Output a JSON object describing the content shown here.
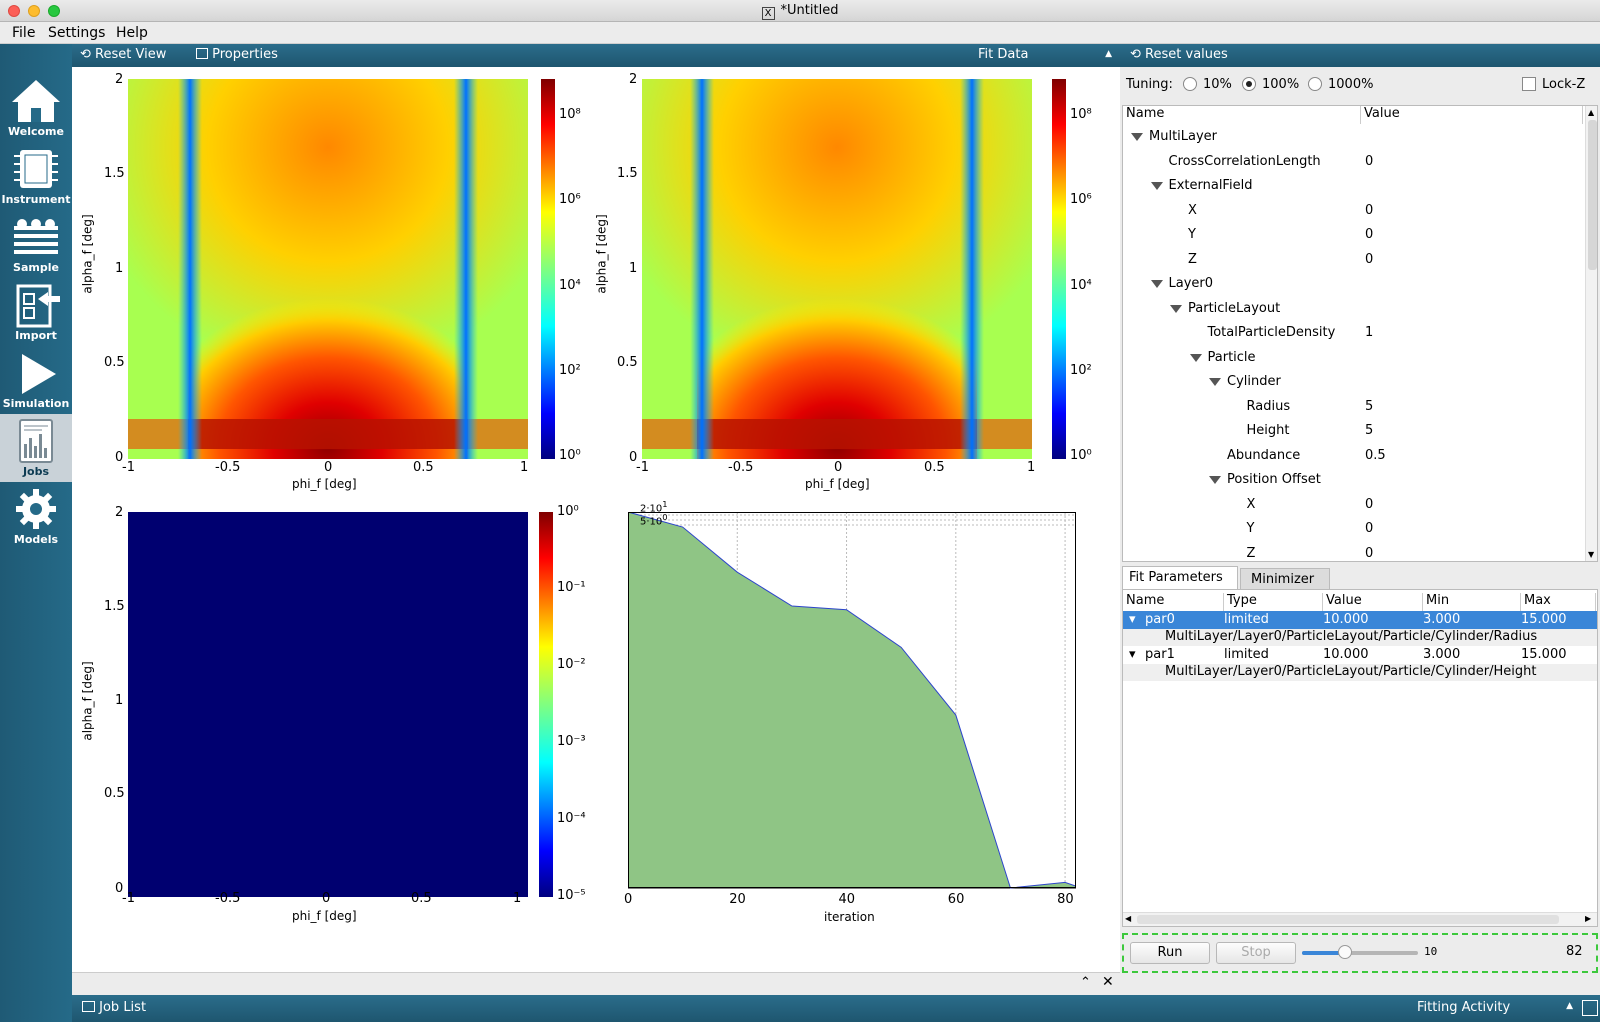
{
  "window": {
    "title": "*Untitled"
  },
  "menubar": {
    "items": [
      "File",
      "Settings",
      "Help"
    ]
  },
  "sidebar": {
    "items": [
      {
        "label": "Welcome",
        "icon": "home-icon"
      },
      {
        "label": "Instrument",
        "icon": "chip-icon"
      },
      {
        "label": "Sample",
        "icon": "layers-icon"
      },
      {
        "label": "Import",
        "icon": "import-icon"
      },
      {
        "label": "Simulation",
        "icon": "play-icon"
      },
      {
        "label": "Jobs",
        "icon": "chart-document-icon"
      },
      {
        "label": "Models",
        "icon": "gear-icon"
      }
    ],
    "active": "Jobs"
  },
  "toolbar": {
    "reset_view": "Reset View",
    "properties": "Properties",
    "view_select": "Fit Data",
    "reset_values": "Reset values"
  },
  "tuning": {
    "label": "Tuning:",
    "options": [
      "10%",
      "100%",
      "1000%"
    ],
    "selected": "100%",
    "lockz": "Lock-Z",
    "lockz_checked": false
  },
  "param_tree": {
    "headers": [
      "Name",
      "Value"
    ],
    "rows": [
      {
        "name": "MultiLayer",
        "value": "",
        "depth": 0,
        "expand": true
      },
      {
        "name": "CrossCorrelationLength",
        "value": "0",
        "depth": 1,
        "expand": false
      },
      {
        "name": "ExternalField",
        "value": "",
        "depth": 1,
        "expand": true
      },
      {
        "name": "X",
        "value": "0",
        "depth": 2,
        "expand": false
      },
      {
        "name": "Y",
        "value": "0",
        "depth": 2,
        "expand": false
      },
      {
        "name": "Z",
        "value": "0",
        "depth": 2,
        "expand": false
      },
      {
        "name": "Layer0",
        "value": "",
        "depth": 1,
        "expand": true
      },
      {
        "name": "ParticleLayout",
        "value": "",
        "depth": 2,
        "expand": true
      },
      {
        "name": "TotalParticleDensity",
        "value": "1",
        "depth": 3,
        "expand": false
      },
      {
        "name": "Particle",
        "value": "",
        "depth": 3,
        "expand": true
      },
      {
        "name": "Cylinder",
        "value": "",
        "depth": 4,
        "expand": true
      },
      {
        "name": "Radius",
        "value": "5",
        "depth": 5,
        "expand": false
      },
      {
        "name": "Height",
        "value": "5",
        "depth": 5,
        "expand": false
      },
      {
        "name": "Abundance",
        "value": "0.5",
        "depth": 4,
        "expand": false
      },
      {
        "name": "Position Offset",
        "value": "",
        "depth": 4,
        "expand": true
      },
      {
        "name": "X",
        "value": "0",
        "depth": 5,
        "expand": false
      },
      {
        "name": "Y",
        "value": "0",
        "depth": 5,
        "expand": false
      },
      {
        "name": "Z",
        "value": "0",
        "depth": 5,
        "expand": false
      }
    ]
  },
  "fit_tabs": [
    "Fit Parameters",
    "Minimizer"
  ],
  "fit_params": {
    "headers": [
      "Name",
      "Type",
      "Value",
      "Min",
      "Max"
    ],
    "rows": [
      {
        "name": "par0",
        "type": "limited",
        "value": "10.000",
        "min": "3.000",
        "max": "15.000",
        "path": "MultiLayer/Layer0/ParticleLayout/Particle/Cylinder/Radius",
        "selected": true
      },
      {
        "name": "par1",
        "type": "limited",
        "value": "10.000",
        "min": "3.000",
        "max": "15.000",
        "path": "MultiLayer/Layer0/ParticleLayout/Particle/Cylinder/Height",
        "selected": false
      }
    ]
  },
  "run_panel": {
    "run": "Run",
    "stop": "Stop",
    "slider_value": "10",
    "iterations": "82"
  },
  "statusbar": {
    "job_list": "Job List",
    "activity": "Fitting Activity"
  },
  "plots": {
    "heatmap_ticks_x": [
      "-1",
      "-0.5",
      "0",
      "0.5",
      "1"
    ],
    "heatmap_ticks_y": [
      "0",
      "0.5",
      "1",
      "1.5",
      "2"
    ],
    "xlabel": "phi_f [deg]",
    "ylabel": "alpha_f [deg]",
    "colorbar_top": [
      "10⁰",
      "10²",
      "10⁴",
      "10⁶",
      "10⁸"
    ],
    "colorbar_diff": [
      "10⁻⁵",
      "10⁻⁴",
      "10⁻³",
      "10⁻²",
      "10⁻¹",
      "10⁰"
    ],
    "chi2_xlabel": "iteration"
  },
  "chart_data": {
    "type": "area",
    "title": "",
    "xlabel": "iteration",
    "ylabel": "",
    "x": [
      0,
      10,
      20,
      30,
      40,
      50,
      60,
      70,
      80,
      82
    ],
    "series": [
      {
        "values": [
          1.0,
          0.96,
          0.84,
          0.75,
          0.74,
          0.64,
          0.46,
          0.0,
          0.015,
          0.005
        ]
      }
    ],
    "xlim": [
      0,
      82
    ],
    "xticks": [
      "0",
      "20",
      "40",
      "60",
      "80"
    ],
    "fill_color": "#8fc585",
    "line_color": "#2c44cc"
  }
}
